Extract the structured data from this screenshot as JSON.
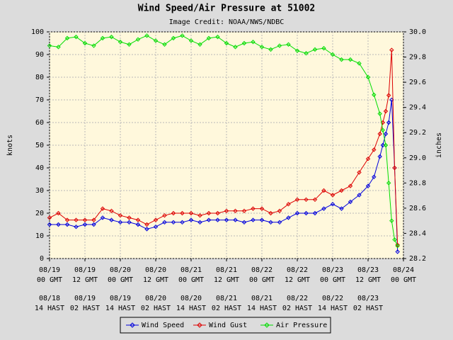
{
  "chart_data": {
    "type": "line",
    "title": "Wind Speed/Air Pressure at 51002",
    "subtitle": "Image Credit: NOAA/NWS/NDBC",
    "ylabel": "knots",
    "y2label": "inches",
    "x": [
      0,
      3,
      6,
      9,
      12,
      15,
      18,
      21,
      24,
      27,
      30,
      33,
      36,
      39,
      42,
      45,
      48,
      51,
      54,
      57,
      60,
      63,
      66,
      69,
      72,
      75,
      78,
      81,
      84,
      87,
      90,
      93,
      96,
      99,
      102,
      105,
      108,
      110,
      112,
      113,
      114,
      115,
      116,
      117,
      118
    ],
    "xlim": [
      0,
      120
    ],
    "xticks": [
      {
        "value": 0,
        "label": "08/19",
        "label2": "00 GMT",
        "hast": "08/18",
        "hast2": "14 HAST"
      },
      {
        "value": 12,
        "label": "08/19",
        "label2": "12 GMT",
        "hast": "08/19",
        "hast2": "02 HAST"
      },
      {
        "value": 24,
        "label": "08/20",
        "label2": "00 GMT",
        "hast": "08/19",
        "hast2": "14 HAST"
      },
      {
        "value": 36,
        "label": "08/20",
        "label2": "12 GMT",
        "hast": "08/20",
        "hast2": "02 HAST"
      },
      {
        "value": 48,
        "label": "08/21",
        "label2": "00 GMT",
        "hast": "08/20",
        "hast2": "14 HAST"
      },
      {
        "value": 60,
        "label": "08/21",
        "label2": "12 GMT",
        "hast": "08/21",
        "hast2": "02 HAST"
      },
      {
        "value": 72,
        "label": "08/22",
        "label2": "00 GMT",
        "hast": "08/21",
        "hast2": "14 HAST"
      },
      {
        "value": 84,
        "label": "08/22",
        "label2": "12 GMT",
        "hast": "08/22",
        "hast2": "02 HAST"
      },
      {
        "value": 96,
        "label": "08/23",
        "label2": "00 GMT",
        "hast": "08/22",
        "hast2": "14 HAST"
      },
      {
        "value": 108,
        "label": "08/23",
        "label2": "12 GMT",
        "hast": "08/23",
        "hast2": "02 HAST"
      },
      {
        "value": 120,
        "label": "08/24",
        "label2": "00 GMT",
        "hast": "08/23",
        "hast2": "14 HAST"
      }
    ],
    "ylim": [
      0,
      100
    ],
    "yticks": [
      0,
      10,
      20,
      30,
      40,
      50,
      60,
      70,
      80,
      90,
      100
    ],
    "y2lim": [
      28.2,
      30.0
    ],
    "y2ticks": [
      28.2,
      28.4,
      28.6,
      28.8,
      {
        "value": 29,
        "label": "29.0"
      },
      29.2,
      29.4,
      29.6,
      29.8,
      {
        "value": 30,
        "label": "30.0"
      }
    ],
    "grid": true,
    "series": [
      {
        "name": "Wind Speed",
        "color": "#0000dd",
        "axis": "y",
        "values": [
          15,
          15,
          15,
          14,
          15,
          15,
          18,
          17,
          16,
          16,
          15,
          13,
          14,
          16,
          16,
          16,
          17,
          16,
          17,
          17,
          17,
          17,
          16,
          17,
          17,
          16,
          16,
          18,
          20,
          20,
          20,
          22,
          24,
          22,
          25,
          28,
          32,
          36,
          45,
          50,
          55,
          60,
          70,
          40,
          3
        ]
      },
      {
        "name": "Wind Gust",
        "color": "#dd0000",
        "axis": "y",
        "values": [
          18,
          20,
          17,
          17,
          17,
          17,
          22,
          21,
          19,
          18,
          17,
          15,
          17,
          19,
          20,
          20,
          20,
          19,
          20,
          20,
          21,
          21,
          21,
          22,
          22,
          20,
          21,
          24,
          26,
          26,
          26,
          30,
          28,
          30,
          32,
          38,
          44,
          48,
          55,
          60,
          65,
          72,
          92,
          40,
          6
        ]
      },
      {
        "name": "Air Pressure",
        "color": "#00dd00",
        "axis": "y2",
        "values": [
          29.89,
          29.88,
          29.95,
          29.96,
          29.91,
          29.89,
          29.95,
          29.96,
          29.92,
          29.9,
          29.94,
          29.97,
          29.93,
          29.9,
          29.95,
          29.97,
          29.93,
          29.9,
          29.95,
          29.96,
          29.91,
          29.88,
          29.91,
          29.92,
          29.88,
          29.86,
          29.89,
          29.9,
          29.85,
          29.83,
          29.86,
          29.87,
          29.82,
          29.78,
          29.78,
          29.75,
          29.64,
          29.5,
          29.35,
          29.22,
          29.1,
          28.8,
          28.5,
          28.35,
          28.3
        ]
      }
    ]
  }
}
